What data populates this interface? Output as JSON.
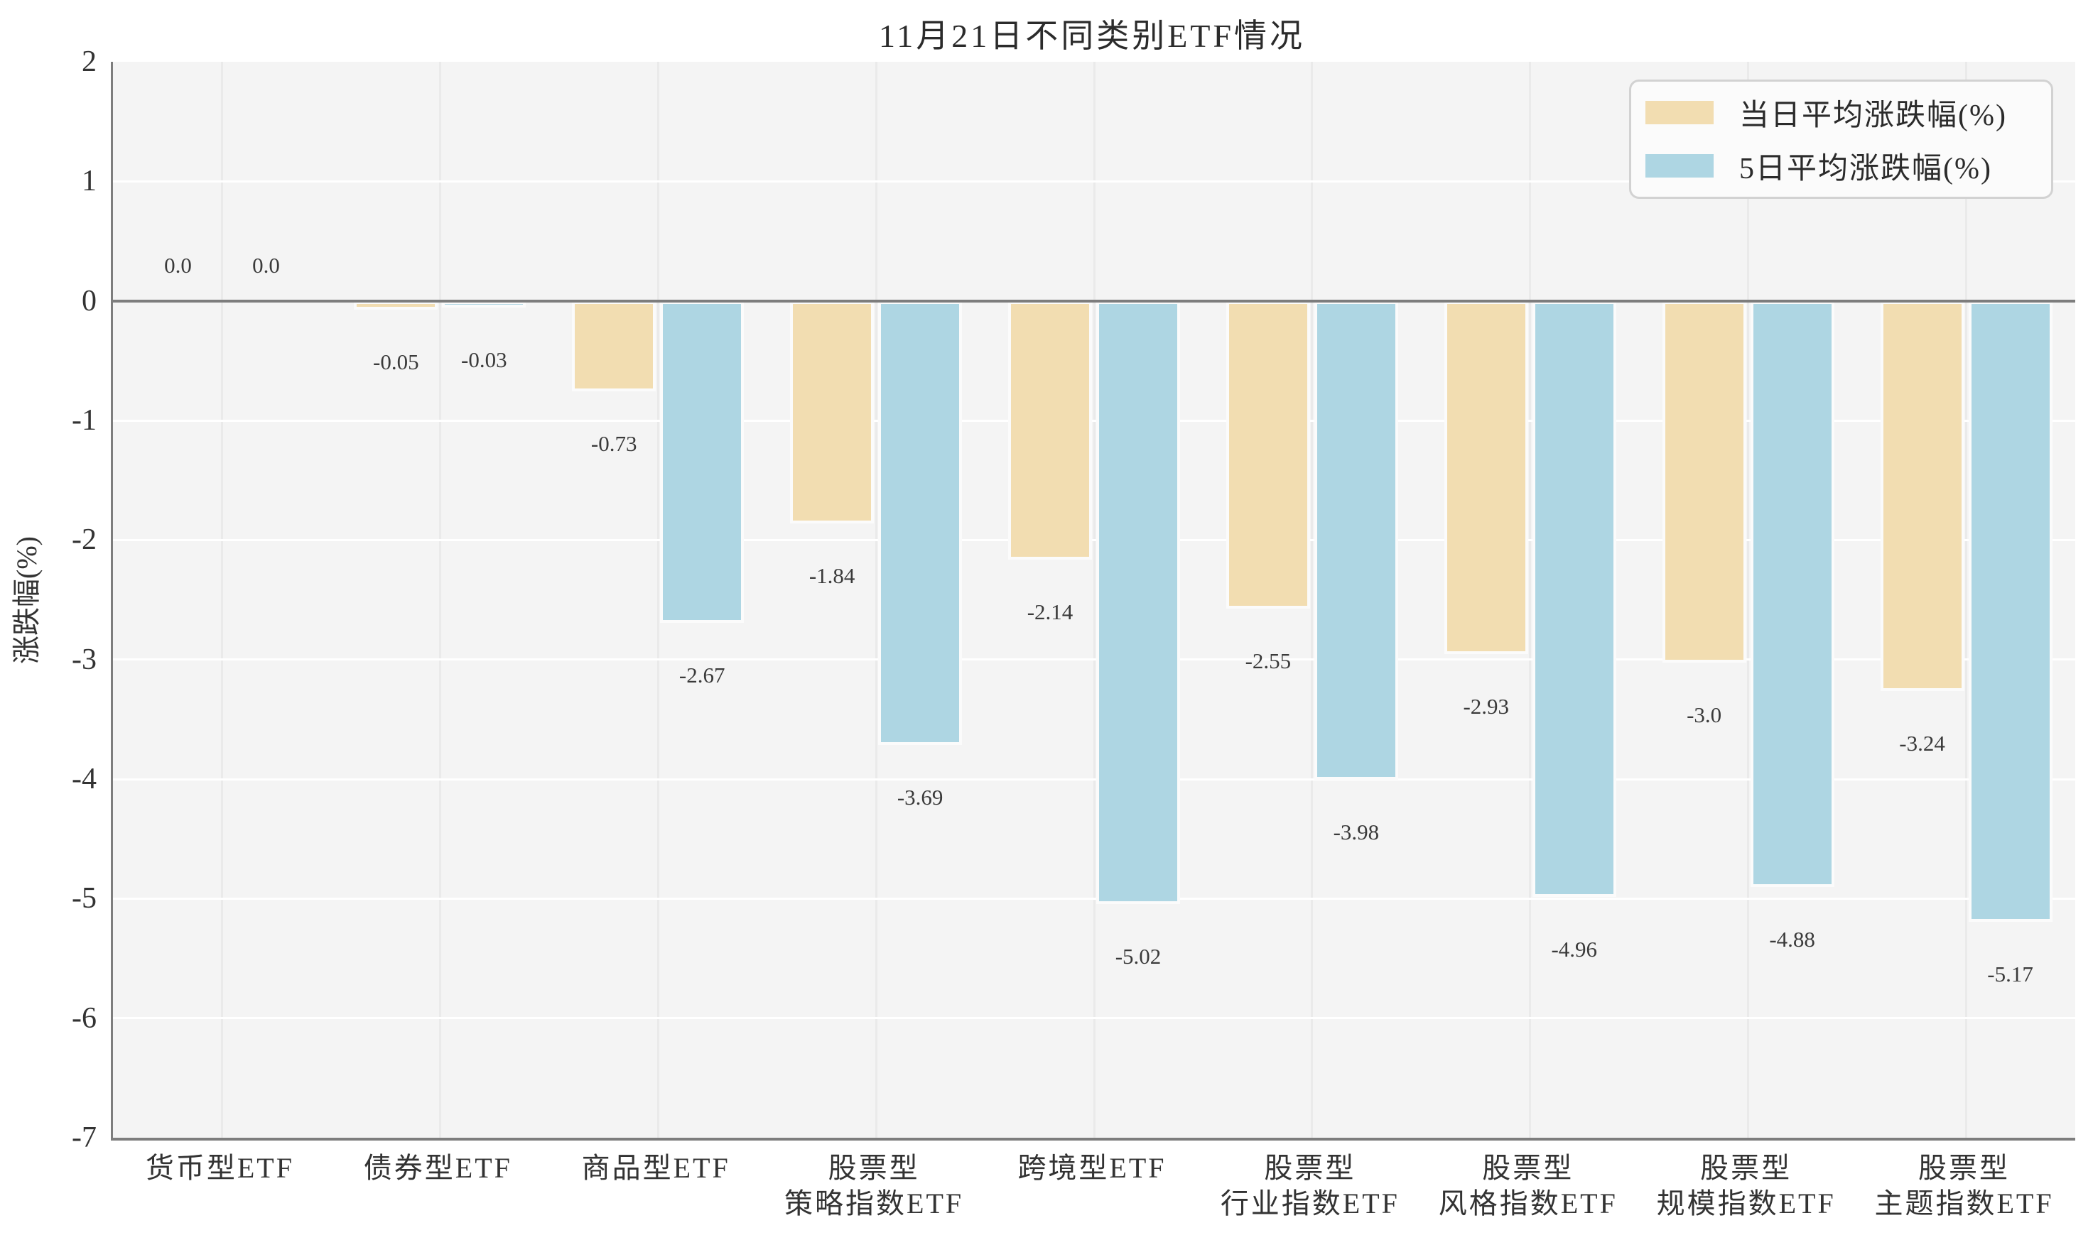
{
  "figure": {
    "title": "11月21日不同类别ETF情况",
    "background": "#ffffff"
  },
  "axes": {
    "ylabel": "涨跌幅(%)",
    "facecolor": "#f4f4f4",
    "h_grid_color": "#ffffff",
    "v_grid_color": "#eaeaea",
    "spine_color": "#7d7d7d",
    "tick_text_color": "#333333",
    "value_label_color": "#3a3a3a"
  },
  "chart_data": {
    "type": "bar",
    "title": "11月21日不同类别ETF情况",
    "xlabel": "",
    "ylabel": "涨跌幅(%)",
    "categories": [
      [
        "货币型ETF"
      ],
      [
        "债券型ETF"
      ],
      [
        "商品型ETF"
      ],
      [
        "股票型",
        "策略指数ETF"
      ],
      [
        "跨境型ETF"
      ],
      [
        "股票型",
        "行业指数ETF"
      ],
      [
        "股票型",
        "风格指数ETF"
      ],
      [
        "股票型",
        "规模指数ETF"
      ],
      [
        "股票型",
        "主题指数ETF"
      ]
    ],
    "series": [
      {
        "name": "当日平均涨跌幅(%)",
        "color": "#f2ddb1",
        "values": [
          0.0,
          -0.05,
          -0.73,
          -1.84,
          -2.14,
          -2.55,
          -2.93,
          -3.0,
          -3.24
        ],
        "labels": [
          "0.0",
          "-0.05",
          "-0.73",
          "-1.84",
          "-2.14",
          "-2.55",
          "-2.93",
          "-3.0",
          "-3.24"
        ]
      },
      {
        "name": "5日平均涨跌幅(%)",
        "color": "#aed6e3",
        "values": [
          0.0,
          -0.03,
          -2.67,
          -3.69,
          -5.02,
          -3.98,
          -4.96,
          -4.88,
          -5.17
        ],
        "labels": [
          "0.0",
          "-0.03",
          "-2.67",
          "-3.69",
          "-5.02",
          "-3.98",
          "-4.96",
          "-4.88",
          "-5.17"
        ]
      }
    ],
    "yticks": [
      2,
      1,
      0,
      -1,
      -2,
      -3,
      -4,
      -5,
      -6,
      -7
    ],
    "ylim": [
      2,
      -7
    ],
    "grid": true,
    "legend_position": "upper right"
  }
}
